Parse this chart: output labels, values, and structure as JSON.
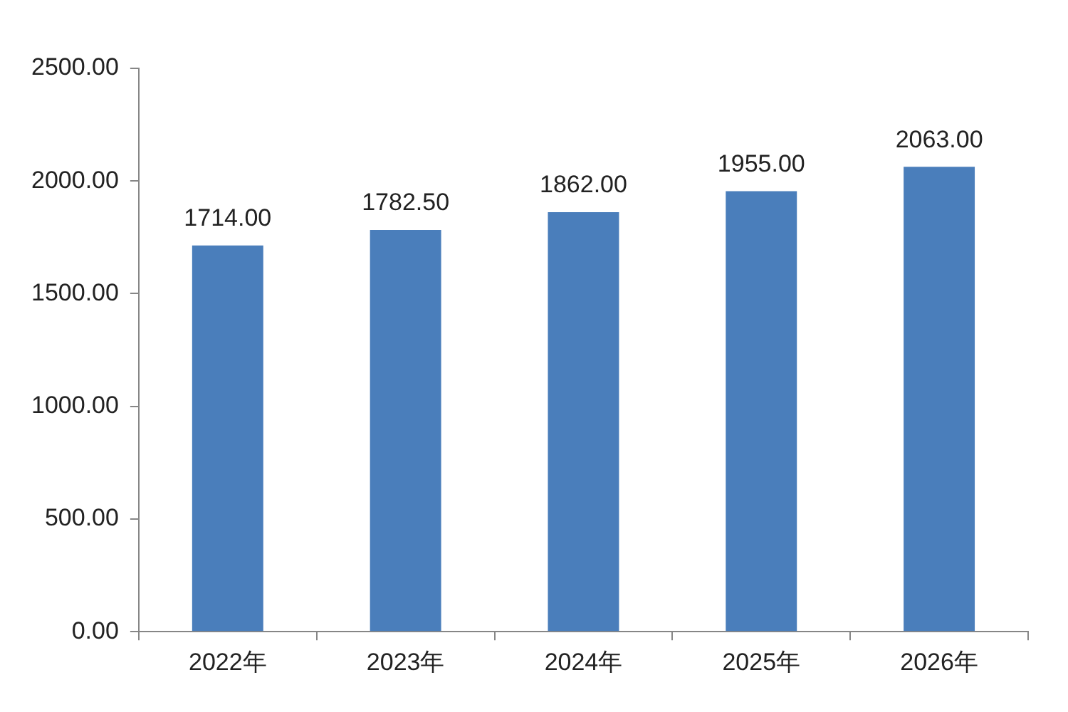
{
  "chart_data": {
    "type": "bar",
    "categories": [
      "2022年",
      "2023年",
      "2024年",
      "2025年",
      "2026年"
    ],
    "values": [
      1714,
      1782.5,
      1862,
      1955,
      2063
    ],
    "color": "#4a7ebb",
    "value_labels": [
      "1714.00",
      "1782.50",
      "1862.00",
      "1955.00",
      "2063.00"
    ],
    "ylim": [
      0,
      2500
    ],
    "yticks": [
      {
        "value": 0,
        "label": "0.00"
      },
      {
        "value": 500,
        "label": "500.00"
      },
      {
        "value": 1000,
        "label": "1000.00"
      },
      {
        "value": 1500,
        "label": "1500.00"
      },
      {
        "value": 2000,
        "label": "2000.00"
      },
      {
        "value": 2500,
        "label": "2500.00"
      }
    ],
    "grid": false,
    "legend": false
  }
}
